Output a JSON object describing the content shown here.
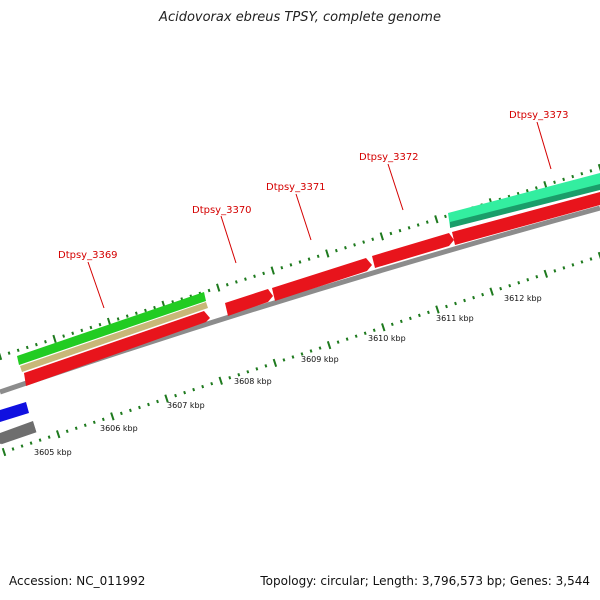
{
  "title": "Acidovorax ebreus TPSY, complete genome",
  "accession": "Accession: NC_011992",
  "summary": "Topology: circular; Length: 3,796,573 bp; Genes: 3,544",
  "colors": {
    "backbone": "#8c8c8c",
    "cds_forward": "#e8141c",
    "gene_label": "#d40000",
    "tick": "#1e7a1e",
    "blue_feature": "#1010e0",
    "grey_feature": "#6e6e6e",
    "green_feature": "#22cc22",
    "tan_feature": "#c8b878",
    "teal_feature": "#33eea0"
  },
  "genes": [
    {
      "label": "Dtpsy_3369"
    },
    {
      "label": "Dtpsy_3370"
    },
    {
      "label": "Dtpsy_3371"
    },
    {
      "label": "Dtpsy_3372"
    },
    {
      "label": "Dtpsy_3373"
    }
  ],
  "kbp_ticks": [
    {
      "label": "3605 kbp"
    },
    {
      "label": "3606 kbp"
    },
    {
      "label": "3607 kbp"
    },
    {
      "label": "3608 kbp"
    },
    {
      "label": "3609 kbp"
    },
    {
      "label": "3610 kbp"
    },
    {
      "label": "3611 kbp"
    },
    {
      "label": "3612 kbp"
    }
  ]
}
